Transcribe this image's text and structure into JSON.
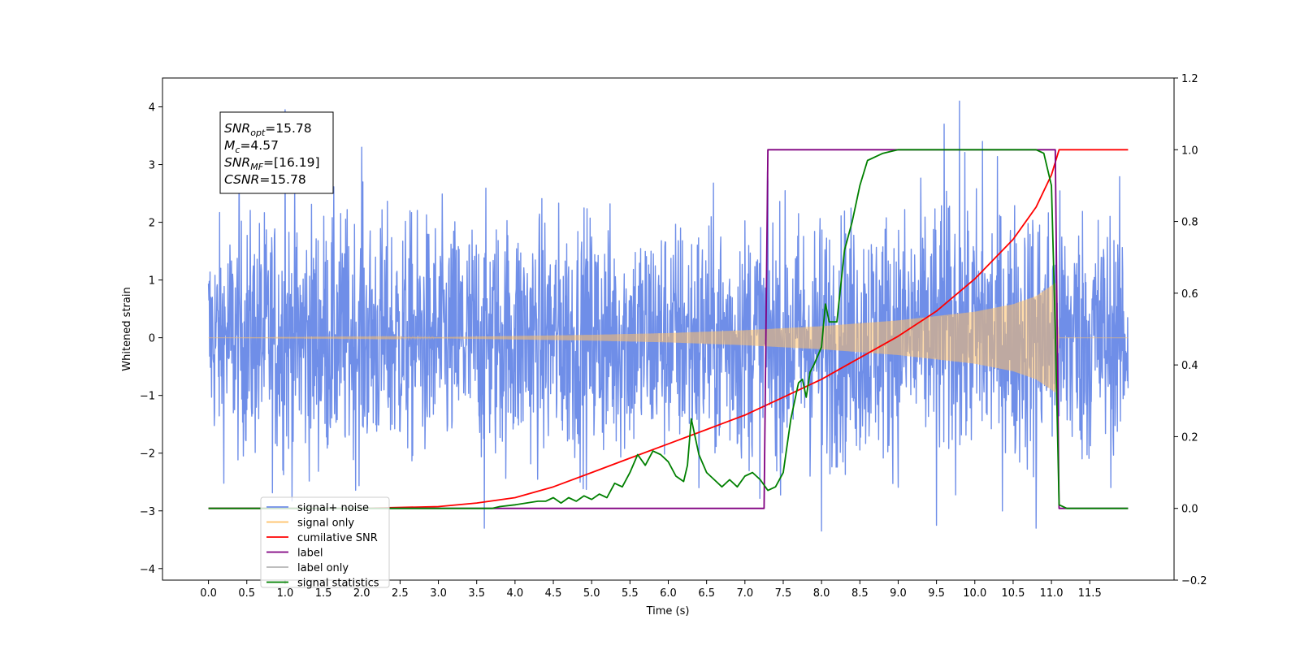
{
  "chart_data": {
    "type": "line",
    "xlabel": "Time (s)",
    "ylabel": "Whitened strain",
    "xlim": [
      -0.6,
      12.6
    ],
    "ylim": [
      -4.2,
      4.5
    ],
    "y2lim": [
      -0.2,
      1.2
    ],
    "x_ticks": [
      "0.0",
      "0.5",
      "1.0",
      "1.5",
      "2.0",
      "2.5",
      "3.0",
      "3.5",
      "4.0",
      "4.5",
      "5.0",
      "5.5",
      "6.0",
      "6.5",
      "7.0",
      "7.5",
      "8.0",
      "8.5",
      "9.0",
      "9.5",
      "10.0",
      "10.5",
      "11.0",
      "11.5"
    ],
    "y_ticks": [
      "4",
      "3",
      "2",
      "1",
      "0",
      "−1",
      "−2",
      "−3",
      "−4"
    ],
    "y2_ticks": [
      "1.2",
      "1.0",
      "0.8",
      "0.6",
      "0.4",
      "0.2",
      "0.0",
      "−0.2"
    ],
    "grid": false,
    "legend_position": "lower-left",
    "legend": [
      {
        "label": "signal+ noise",
        "color": "#6f8ee8"
      },
      {
        "label": "signal only",
        "color": "#ffc066"
      },
      {
        "label": "cumilative SNR",
        "color": "#ff0000"
      },
      {
        "label": "label",
        "color": "#800080"
      },
      {
        "label": "label only",
        "color": "#b5b5b5"
      },
      {
        "label": "signal statistics",
        "color": "#008000"
      }
    ],
    "stats_box": {
      "lines": [
        {
          "main": "SNR",
          "sub": "opt",
          "value": "=15.78"
        },
        {
          "main": "M",
          "sub": "c",
          "value": "=4.57"
        },
        {
          "main": "SNR",
          "sub": "MF",
          "value": "=[16.19]"
        },
        {
          "main": "CSNR",
          "sub": "",
          "value": "=15.78"
        }
      ]
    },
    "series": [
      {
        "name": "signal+ noise",
        "axis": "left",
        "color": "#6f8ee8",
        "t_range": [
          0.0,
          12.0
        ],
        "noise_envelope_upper": [
          [
            0.0,
            2.2
          ],
          [
            1.0,
            2.6
          ],
          [
            2.0,
            2.5
          ],
          [
            3.0,
            2.4
          ],
          [
            4.0,
            2.5
          ],
          [
            5.0,
            2.5
          ],
          [
            6.0,
            2.4
          ],
          [
            7.0,
            2.5
          ],
          [
            8.0,
            2.5
          ],
          [
            9.0,
            2.6
          ],
          [
            9.8,
            2.8
          ],
          [
            10.5,
            2.7
          ],
          [
            11.0,
            2.8
          ],
          [
            12.0,
            2.4
          ]
        ],
        "noise_envelope_lower": [
          [
            0.0,
            -2.2
          ],
          [
            1.0,
            -2.6
          ],
          [
            2.0,
            -2.5
          ],
          [
            3.0,
            -2.5
          ],
          [
            4.0,
            -2.5
          ],
          [
            5.0,
            -2.5
          ],
          [
            6.0,
            -2.4
          ],
          [
            7.0,
            -2.5
          ],
          [
            8.0,
            -2.6
          ],
          [
            9.0,
            -2.5
          ],
          [
            10.0,
            -2.6
          ],
          [
            11.0,
            -2.7
          ],
          [
            12.0,
            -2.4
          ]
        ],
        "peaks": [
          [
            1.0,
            3.95
          ],
          [
            9.8,
            4.1
          ],
          [
            9.6,
            3.7
          ],
          [
            10.1,
            3.4
          ],
          [
            0.4,
            3.3
          ],
          [
            2.0,
            3.3
          ],
          [
            7.3,
            2.7
          ],
          [
            6.4,
            -2.6
          ],
          [
            3.6,
            -3.3
          ],
          [
            8.0,
            -3.35
          ],
          [
            10.8,
            -3.3
          ],
          [
            9.5,
            -3.25
          ]
        ]
      },
      {
        "name": "signal only",
        "axis": "left",
        "color": "#ffc066",
        "chirp_envelope": [
          [
            0.0,
            0.0
          ],
          [
            3.0,
            0.01
          ],
          [
            4.0,
            0.03
          ],
          [
            5.0,
            0.05
          ],
          [
            6.0,
            0.08
          ],
          [
            7.0,
            0.13
          ],
          [
            8.0,
            0.2
          ],
          [
            9.0,
            0.3
          ],
          [
            10.0,
            0.45
          ],
          [
            10.5,
            0.58
          ],
          [
            10.8,
            0.72
          ],
          [
            11.0,
            0.9
          ],
          [
            11.05,
            0.95
          ],
          [
            11.1,
            0.0
          ],
          [
            12.0,
            0.0
          ]
        ]
      },
      {
        "name": "cumilative SNR",
        "axis": "right",
        "color": "#ff0000",
        "x": [
          0.0,
          2.0,
          3.0,
          3.5,
          4.0,
          4.5,
          5.0,
          5.5,
          6.0,
          6.5,
          7.0,
          7.5,
          8.0,
          8.5,
          9.0,
          9.5,
          10.0,
          10.5,
          10.8,
          11.0,
          11.1,
          11.2,
          12.0
        ],
        "y": [
          0.0,
          0.0,
          0.005,
          0.015,
          0.03,
          0.06,
          0.1,
          0.14,
          0.18,
          0.22,
          0.26,
          0.31,
          0.36,
          0.42,
          0.48,
          0.55,
          0.64,
          0.75,
          0.84,
          0.93,
          1.0,
          1.0,
          1.0
        ]
      },
      {
        "name": "label",
        "axis": "right",
        "color": "#800080",
        "x": [
          0.0,
          7.25,
          7.3,
          11.05,
          11.1,
          12.0
        ],
        "y": [
          0.0,
          0.0,
          1.0,
          1.0,
          0.0,
          0.0
        ]
      },
      {
        "name": "signal statistics",
        "axis": "right",
        "color": "#008000",
        "x": [
          0.0,
          3.7,
          3.8,
          4.0,
          4.3,
          4.4,
          4.5,
          4.6,
          4.7,
          4.8,
          4.9,
          5.0,
          5.1,
          5.2,
          5.3,
          5.4,
          5.5,
          5.6,
          5.7,
          5.8,
          5.9,
          6.0,
          6.1,
          6.2,
          6.25,
          6.3,
          6.35,
          6.4,
          6.5,
          6.6,
          6.7,
          6.8,
          6.9,
          7.0,
          7.1,
          7.2,
          7.3,
          7.4,
          7.5,
          7.6,
          7.7,
          7.75,
          7.8,
          7.85,
          7.9,
          8.0,
          8.05,
          8.1,
          8.2,
          8.3,
          8.4,
          8.5,
          8.6,
          8.7,
          8.8,
          8.9,
          9.0,
          9.5,
          10.0,
          10.5,
          10.8,
          10.9,
          11.0,
          11.05,
          11.1,
          11.2,
          12.0
        ],
        "y": [
          0.0,
          0.0,
          0.005,
          0.01,
          0.02,
          0.02,
          0.03,
          0.015,
          0.03,
          0.02,
          0.035,
          0.025,
          0.04,
          0.03,
          0.07,
          0.06,
          0.1,
          0.15,
          0.12,
          0.16,
          0.15,
          0.13,
          0.09,
          0.075,
          0.12,
          0.25,
          0.2,
          0.15,
          0.1,
          0.08,
          0.06,
          0.08,
          0.06,
          0.09,
          0.1,
          0.08,
          0.05,
          0.06,
          0.1,
          0.25,
          0.35,
          0.36,
          0.31,
          0.38,
          0.4,
          0.45,
          0.57,
          0.52,
          0.52,
          0.72,
          0.8,
          0.9,
          0.97,
          0.98,
          0.99,
          0.995,
          1.0,
          1.0,
          1.0,
          1.0,
          1.0,
          0.99,
          0.9,
          0.5,
          0.01,
          0.0,
          0.0
        ]
      }
    ]
  }
}
